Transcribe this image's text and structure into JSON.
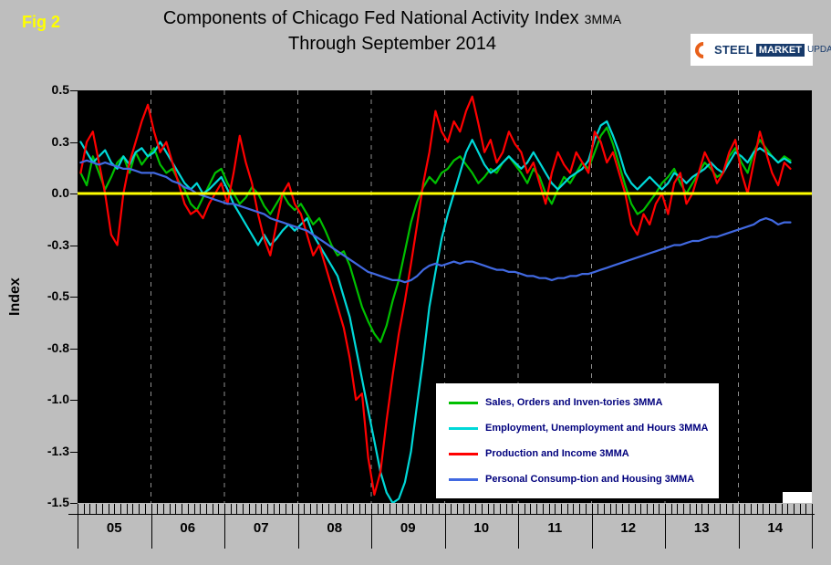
{
  "figure_label": "Fig 2",
  "title": {
    "line1_main": "Components of Chicago Fed National Activity Index",
    "line1_suffix": "3MMA",
    "line2": "Through September 2014"
  },
  "logo": {
    "steel": "STEEL",
    "market": "MARKET",
    "update": "UPDATE"
  },
  "chart_data": {
    "type": "line",
    "title": "Components of Chicago Fed National Activity Index 3MMA Through September 2014",
    "xlabel": "",
    "ylabel": "Index",
    "ylim": [
      -1.5,
      0.5
    ],
    "ytick_values": [
      0.5,
      0.25,
      0.0,
      -0.25,
      -0.5,
      -0.75,
      -1.0,
      -1.25,
      -1.5
    ],
    "ytick_labels": [
      "0.5",
      "0.3",
      "0.0",
      "-0.3",
      "-0.5",
      "-0.8",
      "-1.0",
      "-1.3",
      "-1.5"
    ],
    "x_years": [
      "05",
      "06",
      "07",
      "08",
      "09",
      "10",
      "11",
      "12",
      "13",
      "14"
    ],
    "x_frequency": "monthly",
    "x_range": [
      "2005-01",
      "2014-09"
    ],
    "grid": "vertical-dashed-year-lines",
    "grid_color": "#909090",
    "plot_bg": "#000000",
    "zero_line": {
      "value": 0.0,
      "color": "#ffff00"
    },
    "legend_position": "lower-right",
    "series": [
      {
        "name": "Sales, Orders and Inven-tories 3MMA",
        "color": "#00c000",
        "values": [
          0.1,
          0.04,
          0.18,
          0.1,
          0.02,
          0.08,
          0.15,
          0.18,
          0.1,
          0.2,
          0.14,
          0.18,
          0.22,
          0.14,
          0.1,
          0.12,
          0.06,
          0.02,
          -0.05,
          -0.08,
          -0.02,
          0.04,
          0.1,
          0.12,
          0.05,
          0.0,
          -0.05,
          -0.02,
          0.03,
          0.0,
          -0.06,
          -0.1,
          -0.05,
          0.0,
          -0.05,
          -0.08,
          -0.05,
          -0.1,
          -0.15,
          -0.12,
          -0.18,
          -0.25,
          -0.3,
          -0.28,
          -0.35,
          -0.45,
          -0.55,
          -0.62,
          -0.68,
          -0.72,
          -0.64,
          -0.52,
          -0.42,
          -0.28,
          -0.14,
          -0.04,
          0.03,
          0.08,
          0.05,
          0.1,
          0.12,
          0.16,
          0.18,
          0.14,
          0.1,
          0.05,
          0.08,
          0.12,
          0.1,
          0.15,
          0.18,
          0.14,
          0.1,
          0.05,
          0.12,
          0.08,
          0.0,
          -0.05,
          0.02,
          0.08,
          0.05,
          0.1,
          0.15,
          0.12,
          0.2,
          0.28,
          0.32,
          0.24,
          0.14,
          0.04,
          -0.05,
          -0.1,
          -0.08,
          -0.04,
          0.0,
          0.05,
          0.08,
          0.12,
          0.05,
          0.0,
          0.05,
          0.1,
          0.15,
          0.12,
          0.08,
          0.1,
          0.18,
          0.22,
          0.15,
          0.1,
          0.2,
          0.26,
          0.22,
          0.18,
          0.15,
          0.18,
          0.16
        ]
      },
      {
        "name": "Employment, Unemployment and Hours 3MMA",
        "color": "#00d8d8",
        "values": [
          0.25,
          0.2,
          0.15,
          0.18,
          0.21,
          0.15,
          0.12,
          0.18,
          0.14,
          0.2,
          0.22,
          0.18,
          0.2,
          0.25,
          0.2,
          0.15,
          0.1,
          0.05,
          0.02,
          0.05,
          0.0,
          0.02,
          0.05,
          0.08,
          0.02,
          -0.05,
          -0.1,
          -0.15,
          -0.2,
          -0.25,
          -0.2,
          -0.25,
          -0.22,
          -0.18,
          -0.15,
          -0.18,
          -0.15,
          -0.12,
          -0.2,
          -0.25,
          -0.3,
          -0.35,
          -0.4,
          -0.5,
          -0.6,
          -0.75,
          -0.9,
          -1.05,
          -1.2,
          -1.35,
          -1.45,
          -1.5,
          -1.48,
          -1.4,
          -1.25,
          -1.02,
          -0.8,
          -0.55,
          -0.38,
          -0.22,
          -0.1,
          0.0,
          0.1,
          0.2,
          0.26,
          0.2,
          0.14,
          0.1,
          0.12,
          0.15,
          0.18,
          0.15,
          0.12,
          0.15,
          0.2,
          0.15,
          0.1,
          0.05,
          0.02,
          0.05,
          0.08,
          0.1,
          0.12,
          0.16,
          0.26,
          0.33,
          0.35,
          0.28,
          0.2,
          0.1,
          0.05,
          0.02,
          0.05,
          0.08,
          0.05,
          0.02,
          0.05,
          0.1,
          0.08,
          0.05,
          0.08,
          0.1,
          0.12,
          0.15,
          0.12,
          0.1,
          0.15,
          0.2,
          0.18,
          0.15,
          0.2,
          0.22,
          0.2,
          0.18,
          0.15,
          0.17,
          0.15
        ]
      },
      {
        "name": "Production and Income 3MMA",
        "color": "#ff0000",
        "values": [
          0.1,
          0.25,
          0.3,
          0.15,
          0.0,
          -0.2,
          -0.25,
          0.0,
          0.15,
          0.25,
          0.35,
          0.43,
          0.3,
          0.2,
          0.25,
          0.15,
          0.05,
          -0.05,
          -0.1,
          -0.08,
          -0.12,
          -0.05,
          0.0,
          0.05,
          -0.05,
          0.1,
          0.28,
          0.15,
          0.05,
          -0.1,
          -0.22,
          -0.3,
          -0.15,
          0.0,
          0.05,
          -0.05,
          -0.1,
          -0.2,
          -0.3,
          -0.25,
          -0.35,
          -0.45,
          -0.55,
          -0.65,
          -0.8,
          -1.0,
          -0.97,
          -1.28,
          -1.46,
          -1.35,
          -1.1,
          -0.88,
          -0.68,
          -0.52,
          -0.34,
          -0.15,
          0.05,
          0.2,
          0.4,
          0.3,
          0.25,
          0.35,
          0.3,
          0.4,
          0.47,
          0.34,
          0.2,
          0.26,
          0.15,
          0.2,
          0.3,
          0.24,
          0.2,
          0.1,
          0.15,
          0.05,
          -0.05,
          0.1,
          0.2,
          0.14,
          0.1,
          0.2,
          0.15,
          0.1,
          0.3,
          0.25,
          0.15,
          0.2,
          0.1,
          0.0,
          -0.15,
          -0.2,
          -0.1,
          -0.15,
          -0.05,
          0.0,
          -0.1,
          0.05,
          0.1,
          -0.05,
          0.0,
          0.1,
          0.2,
          0.14,
          0.05,
          0.1,
          0.2,
          0.26,
          0.1,
          0.0,
          0.15,
          0.3,
          0.2,
          0.1,
          0.04,
          0.15,
          0.12
        ]
      },
      {
        "name": "Personal Consump-tion and Housing 3MMA",
        "color": "#4169e1",
        "values": [
          0.15,
          0.16,
          0.15,
          0.14,
          0.15,
          0.14,
          0.13,
          0.12,
          0.12,
          0.11,
          0.1,
          0.1,
          0.1,
          0.09,
          0.08,
          0.06,
          0.05,
          0.03,
          0.02,
          0.0,
          -0.01,
          -0.02,
          -0.03,
          -0.04,
          -0.05,
          -0.05,
          -0.06,
          -0.07,
          -0.08,
          -0.09,
          -0.1,
          -0.12,
          -0.13,
          -0.14,
          -0.15,
          -0.16,
          -0.17,
          -0.18,
          -0.2,
          -0.22,
          -0.24,
          -0.26,
          -0.28,
          -0.3,
          -0.32,
          -0.34,
          -0.36,
          -0.38,
          -0.39,
          -0.4,
          -0.41,
          -0.42,
          -0.42,
          -0.43,
          -0.42,
          -0.4,
          -0.37,
          -0.35,
          -0.34,
          -0.35,
          -0.34,
          -0.33,
          -0.34,
          -0.33,
          -0.33,
          -0.34,
          -0.35,
          -0.36,
          -0.37,
          -0.37,
          -0.38,
          -0.38,
          -0.39,
          -0.4,
          -0.4,
          -0.41,
          -0.41,
          -0.42,
          -0.41,
          -0.41,
          -0.4,
          -0.4,
          -0.39,
          -0.39,
          -0.38,
          -0.37,
          -0.36,
          -0.35,
          -0.34,
          -0.33,
          -0.32,
          -0.31,
          -0.3,
          -0.29,
          -0.28,
          -0.27,
          -0.26,
          -0.25,
          -0.25,
          -0.24,
          -0.23,
          -0.23,
          -0.22,
          -0.21,
          -0.21,
          -0.2,
          -0.19,
          -0.18,
          -0.17,
          -0.16,
          -0.15,
          -0.13,
          -0.12,
          -0.13,
          -0.15,
          -0.14,
          -0.14
        ]
      }
    ]
  }
}
